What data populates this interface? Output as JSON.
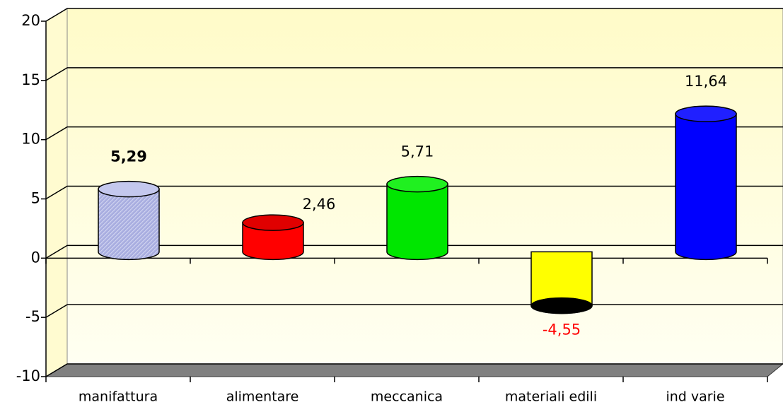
{
  "chart_data": {
    "type": "bar",
    "categories": [
      "manifattura",
      "alimentare",
      "meccanica",
      "materiali edili",
      "ind varie"
    ],
    "values": [
      5.29,
      2.46,
      5.71,
      -4.55,
      11.64
    ],
    "value_labels": [
      "5,29",
      "2,46",
      "5,71",
      "-4,55",
      "11,64"
    ],
    "colors": [
      "#a9aee0",
      "#ff0000",
      "#00e600",
      "#ffff00",
      "#0000ff"
    ],
    "top_colors": [
      "#c4c8ee",
      "#e00000",
      "#20f020",
      "#000000",
      "#2020ff"
    ],
    "ylim": [
      -10,
      20
    ],
    "yticks": [
      -10,
      -5,
      0,
      5,
      10,
      15,
      20
    ],
    "grid": true
  }
}
